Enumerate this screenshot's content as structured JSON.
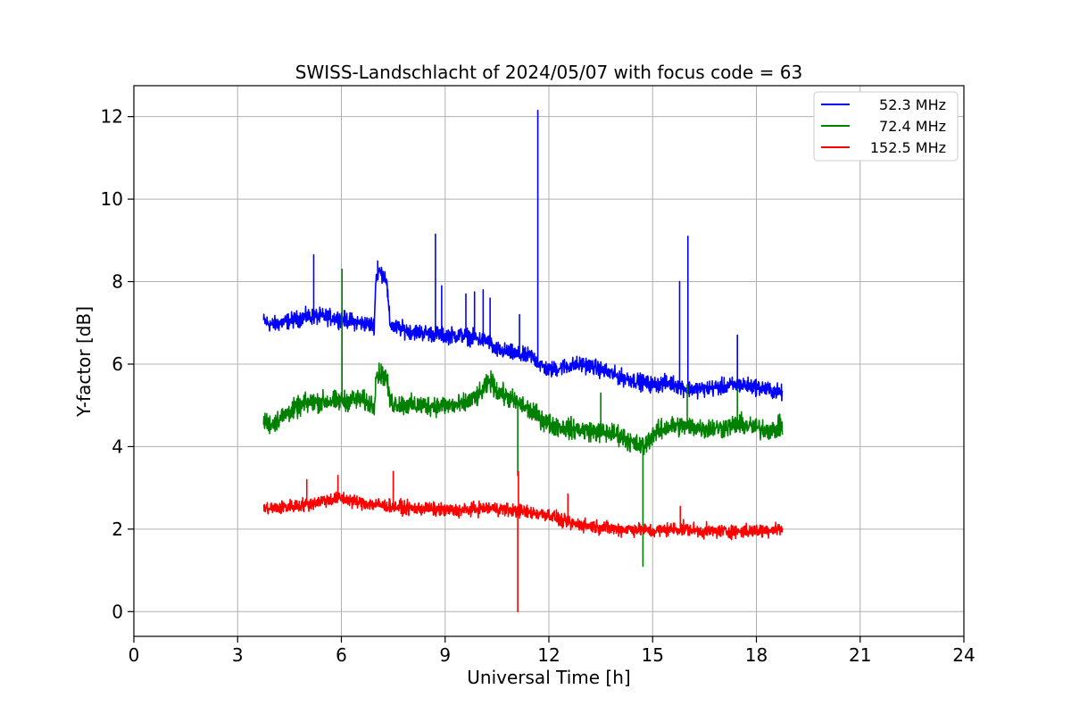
{
  "chart_data": {
    "type": "line",
    "title": "SWISS-Landschlacht of 2024/05/07 with focus code = 63",
    "xlabel": "Universal Time [h]",
    "ylabel": "Y-factor [dB]",
    "xlim": [
      0,
      24
    ],
    "ylim": [
      -0.6,
      12.75
    ],
    "xticks": [
      0,
      3,
      6,
      9,
      12,
      15,
      18,
      21,
      24
    ],
    "xtick_labels": [
      "0",
      "3",
      "6",
      "9",
      "12",
      "15",
      "18",
      "21",
      "24"
    ],
    "yticks": [
      0,
      2,
      4,
      6,
      8,
      10,
      12
    ],
    "ytick_labels": [
      "0",
      "2",
      "4",
      "6",
      "8",
      "10",
      "12"
    ],
    "grid": true,
    "legend_position": "top-right",
    "series": [
      {
        "name": "52.3 MHz",
        "color": "#0000ff",
        "noise": 0.12,
        "x": [
          3.75,
          4.0,
          4.5,
          5.0,
          5.5,
          6.0,
          6.5,
          6.95,
          7.0,
          7.1,
          7.3,
          7.4,
          7.5,
          8.0,
          8.5,
          9.0,
          9.5,
          10.0,
          10.3,
          10.4,
          10.8,
          11.2,
          11.5,
          11.8,
          12.0,
          12.5,
          13.0,
          13.4,
          14.0,
          14.5,
          15.0,
          15.5,
          16.0,
          16.5,
          17.0,
          17.5,
          18.0,
          18.5,
          18.75
        ],
        "y": [
          7.05,
          6.95,
          7.05,
          7.15,
          7.15,
          7.1,
          7.0,
          6.95,
          8.1,
          8.25,
          8.1,
          7.0,
          6.9,
          6.8,
          6.75,
          6.7,
          6.7,
          6.6,
          6.55,
          6.35,
          6.3,
          6.2,
          6.2,
          5.95,
          5.85,
          5.95,
          6.0,
          5.9,
          5.7,
          5.6,
          5.5,
          5.55,
          5.4,
          5.4,
          5.45,
          5.5,
          5.45,
          5.35,
          5.3
        ],
        "spikes": [
          {
            "x": 5.2,
            "y": 8.65
          },
          {
            "x": 7.05,
            "y": 8.5
          },
          {
            "x": 8.72,
            "y": 9.15
          },
          {
            "x": 8.9,
            "y": 7.9
          },
          {
            "x": 9.6,
            "y": 7.7
          },
          {
            "x": 9.85,
            "y": 7.75
          },
          {
            "x": 10.1,
            "y": 7.8
          },
          {
            "x": 10.3,
            "y": 7.6
          },
          {
            "x": 11.15,
            "y": 7.2
          },
          {
            "x": 11.68,
            "y": 12.15
          },
          {
            "x": 15.78,
            "y": 8.0
          },
          {
            "x": 16.02,
            "y": 9.1
          },
          {
            "x": 17.45,
            "y": 6.7
          }
        ]
      },
      {
        "name": "72.4 MHz",
        "color": "#008000",
        "noise": 0.15,
        "x": [
          3.75,
          4.0,
          4.5,
          5.0,
          5.5,
          6.0,
          6.5,
          6.95,
          7.0,
          7.1,
          7.3,
          7.4,
          7.5,
          8.0,
          8.5,
          9.0,
          9.5,
          10.0,
          10.3,
          10.5,
          11.0,
          11.5,
          12.0,
          12.5,
          13.0,
          13.5,
          14.0,
          14.5,
          14.75,
          15.0,
          15.5,
          16.0,
          16.5,
          17.0,
          17.5,
          18.0,
          18.5,
          18.75
        ],
        "y": [
          4.6,
          4.55,
          4.85,
          5.05,
          5.1,
          5.1,
          5.15,
          5.0,
          5.75,
          5.75,
          5.7,
          5.1,
          5.05,
          5.0,
          5.0,
          5.0,
          5.0,
          5.25,
          5.6,
          5.35,
          5.1,
          4.85,
          4.55,
          4.45,
          4.4,
          4.35,
          4.3,
          4.05,
          4.0,
          4.3,
          4.5,
          4.5,
          4.45,
          4.45,
          4.55,
          4.45,
          4.4,
          4.5
        ],
        "spikes": [
          {
            "x": 6.02,
            "y": 8.3
          },
          {
            "x": 7.15,
            "y": 6.0
          },
          {
            "x": 11.1,
            "y": 3.3
          },
          {
            "x": 13.5,
            "y": 5.3
          },
          {
            "x": 14.72,
            "y": 1.1
          },
          {
            "x": 16.0,
            "y": 5.5
          },
          {
            "x": 17.45,
            "y": 5.4
          }
        ]
      },
      {
        "name": "152.5 MHz",
        "color": "#ff0000",
        "noise": 0.1,
        "x": [
          3.75,
          4.0,
          4.5,
          5.0,
          5.5,
          6.0,
          6.5,
          7.0,
          7.5,
          8.0,
          8.5,
          9.0,
          9.5,
          10.0,
          10.5,
          11.0,
          11.5,
          12.0,
          12.5,
          13.0,
          13.5,
          14.0,
          14.5,
          15.0,
          15.5,
          16.0,
          16.5,
          17.0,
          17.5,
          18.0,
          18.5,
          18.75
        ],
        "y": [
          2.5,
          2.5,
          2.55,
          2.6,
          2.7,
          2.75,
          2.65,
          2.6,
          2.55,
          2.5,
          2.5,
          2.45,
          2.45,
          2.5,
          2.5,
          2.45,
          2.4,
          2.35,
          2.15,
          2.1,
          2.05,
          2.0,
          2.0,
          1.95,
          2.0,
          2.0,
          1.95,
          1.95,
          1.95,
          1.95,
          2.0,
          2.0
        ],
        "spikes": [
          {
            "x": 5.0,
            "y": 3.2
          },
          {
            "x": 5.9,
            "y": 3.3
          },
          {
            "x": 7.5,
            "y": 3.4
          },
          {
            "x": 11.1,
            "y": 0.0
          },
          {
            "x": 11.12,
            "y": 3.4
          },
          {
            "x": 12.55,
            "y": 2.85
          },
          {
            "x": 15.8,
            "y": 2.55
          }
        ]
      }
    ]
  }
}
